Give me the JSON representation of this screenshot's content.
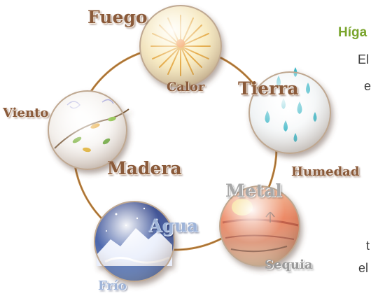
{
  "diagram": {
    "elements": {
      "fire": "Fuego",
      "earth": "Tierra",
      "metal": "Metal",
      "water": "Agua",
      "wood": "Madera"
    },
    "climates": {
      "fire": "Calor",
      "earth": "Humedad",
      "metal": "Sequia",
      "water": "Frío",
      "wood": "Viento"
    }
  },
  "side_text": {
    "heading": "Híga",
    "line_1": "El",
    "line_2": "e",
    "line_3": "t",
    "line_4": "el"
  }
}
